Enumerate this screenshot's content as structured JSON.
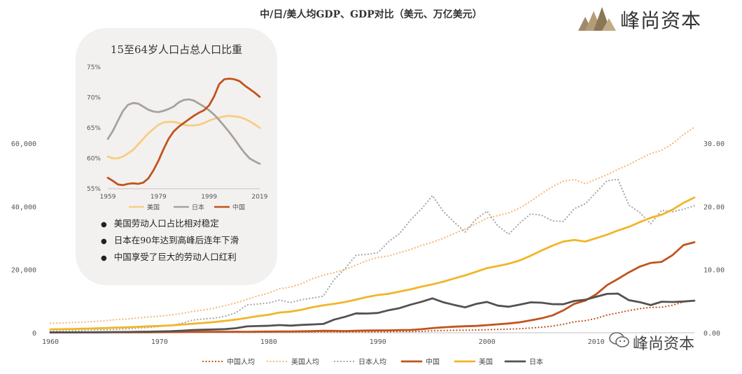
{
  "title": "中/日/美人均GDP、GDP对比（美元、万亿美元）",
  "logo": {
    "text": "峰尚资本"
  },
  "watermark": {
    "text": "峰尚资本"
  },
  "colors": {
    "china": "#c0541e",
    "usa": "#f2b527",
    "japan": "#555150",
    "china_pc": "#c0541e",
    "usa_pc": "#f4b77a",
    "japan_pc": "#a8a6a5",
    "inset_usa": "#f7cd82",
    "inset_japan": "#a9a19c",
    "inset_china": "#c0541e",
    "card_bg": "#f3f1ef"
  },
  "inset": {
    "title": "15至64岁人口占总人口比重",
    "bullets": [
      "美国劳动人口占比相对稳定",
      "日本在90年达到高峰后连年下滑",
      "中国享受了巨大的劳动人口红利"
    ]
  },
  "chart_data": [
    {
      "type": "line",
      "title": "中/日/美人均GDP、GDP对比（美元、万亿美元）",
      "x": [
        1960,
        1961,
        1962,
        1963,
        1964,
        1965,
        1966,
        1967,
        1968,
        1969,
        1970,
        1971,
        1972,
        1973,
        1974,
        1975,
        1976,
        1977,
        1978,
        1979,
        1980,
        1981,
        1982,
        1983,
        1984,
        1985,
        1986,
        1987,
        1988,
        1989,
        1990,
        1991,
        1992,
        1993,
        1994,
        1995,
        1996,
        1997,
        1998,
        1999,
        2000,
        2001,
        2002,
        2003,
        2004,
        2005,
        2006,
        2007,
        2008,
        2009,
        2010,
        2011,
        2012,
        2013,
        2014,
        2015,
        2016,
        2017,
        2018,
        2019
      ],
      "xticks": [
        1960,
        1970,
        1980,
        1990,
        2000,
        2010
      ],
      "xlim": [
        1960,
        2019
      ],
      "y_left": {
        "lim": [
          0,
          70000
        ],
        "ticks": [
          0,
          20000,
          40000,
          60000
        ],
        "tick_labels": [
          "0",
          "20,000",
          "40,000",
          "60,000"
        ]
      },
      "y_right": {
        "lim": [
          0,
          35
        ],
        "ticks": [
          0,
          10,
          20,
          30
        ],
        "tick_labels": [
          "0.00",
          "10.00",
          "20.00",
          "30.00"
        ]
      },
      "legend_position": "bottom",
      "series": [
        {
          "name": "中国人均",
          "axis": "left",
          "style": "dotted",
          "color_key": "china_pc",
          "values": [
            90,
            76,
            70,
            74,
            85,
            98,
            104,
            96,
            91,
            99,
            113,
            118,
            131,
            157,
            160,
            178,
            165,
            185,
            156,
            184,
            195,
            197,
            203,
            225,
            251,
            294,
            282,
            252,
            284,
            311,
            318,
            333,
            367,
            377,
            473,
            610,
            709,
            782,
            829,
            873,
            959,
            1053,
            1148,
            1288,
            1508,
            1753,
            2099,
            2694,
            3468,
            3832,
            4550,
            5618,
            6301,
            7021,
            7651,
            8033,
            8079,
            8759,
            9771,
            10262
          ]
        },
        {
          "name": "美国人均",
          "axis": "left",
          "style": "dotted",
          "color_key": "usa_pc",
          "values": [
            3007,
            3067,
            3244,
            3375,
            3574,
            3828,
            4147,
            4336,
            4696,
            5032,
            5234,
            5609,
            6094,
            6726,
            7226,
            7801,
            8592,
            9453,
            10565,
            11674,
            12575,
            13976,
            14434,
            15544,
            17121,
            18237,
            19071,
            20039,
            21417,
            22857,
            23889,
            24342,
            25419,
            26387,
            27695,
            28691,
            29968,
            31459,
            32854,
            34515,
            36335,
            37133,
            38023,
            39497,
            41712,
            44115,
            46299,
            48050,
            48570,
            47195,
            48651,
            50066,
            51784,
            53291,
            55124,
            56763,
            57867,
            59915,
            62805,
            65118
          ]
        },
        {
          "name": "日本人均",
          "axis": "left",
          "style": "dotted",
          "color_key": "japan_pc",
          "values": [
            479,
            564,
            634,
            718,
            836,
            919,
            1059,
            1229,
            1451,
            1669,
            2037,
            2272,
            2967,
            3997,
            4354,
            4659,
            5197,
            6335,
            8821,
            9105,
            9463,
            10361,
            9578,
            10425,
            10985,
            11585,
            16882,
            20355,
            24593,
            24823,
            25371,
            28925,
            31465,
            35766,
            39269,
            43440,
            38437,
            35022,
            31903,
            36027,
            38532,
            33846,
            31236,
            34808,
            37689,
            37218,
            35434,
            35275,
            39339,
            40855,
            44508,
            48168,
            48603,
            40454,
            38109,
            34524,
            38794,
            38332,
            39159,
            40247
          ]
        },
        {
          "name": "中国",
          "axis": "right",
          "style": "solid",
          "color_key": "china",
          "values": [
            0.06,
            0.05,
            0.05,
            0.05,
            0.06,
            0.07,
            0.08,
            0.07,
            0.07,
            0.08,
            0.09,
            0.1,
            0.11,
            0.14,
            0.14,
            0.16,
            0.15,
            0.17,
            0.15,
            0.18,
            0.19,
            0.2,
            0.21,
            0.23,
            0.26,
            0.31,
            0.3,
            0.27,
            0.31,
            0.35,
            0.36,
            0.38,
            0.43,
            0.44,
            0.56,
            0.73,
            0.86,
            0.96,
            1.03,
            1.09,
            1.21,
            1.34,
            1.47,
            1.66,
            1.96,
            2.29,
            2.75,
            3.55,
            4.59,
            5.1,
            6.09,
            7.55,
            8.53,
            9.57,
            10.48,
            11.06,
            11.23,
            12.31,
            13.89,
            14.34
          ]
        },
        {
          "name": "美国",
          "axis": "right",
          "style": "solid",
          "color_key": "usa",
          "values": [
            0.54,
            0.56,
            0.6,
            0.64,
            0.69,
            0.74,
            0.82,
            0.86,
            0.94,
            1.02,
            1.07,
            1.16,
            1.28,
            1.43,
            1.55,
            1.69,
            1.88,
            2.09,
            2.36,
            2.63,
            2.86,
            3.21,
            3.35,
            3.64,
            4.04,
            4.35,
            4.59,
            4.87,
            5.25,
            5.66,
            5.98,
            6.17,
            6.54,
            6.88,
            7.31,
            7.66,
            8.1,
            8.61,
            9.09,
            9.66,
            10.25,
            10.58,
            10.94,
            11.46,
            12.21,
            13.04,
            13.81,
            14.45,
            14.71,
            14.45,
            14.99,
            15.54,
            16.2,
            16.78,
            17.52,
            18.22,
            18.71,
            19.52,
            20.58,
            21.43
          ]
        },
        {
          "name": "日本",
          "axis": "right",
          "style": "solid",
          "color_key": "japan",
          "values": [
            0.04,
            0.05,
            0.06,
            0.07,
            0.08,
            0.09,
            0.11,
            0.12,
            0.15,
            0.17,
            0.21,
            0.24,
            0.32,
            0.43,
            0.48,
            0.52,
            0.58,
            0.72,
            1.01,
            1.06,
            1.11,
            1.22,
            1.13,
            1.24,
            1.32,
            1.4,
            2.08,
            2.53,
            3.07,
            3.05,
            3.13,
            3.58,
            3.91,
            4.45,
            4.91,
            5.45,
            4.83,
            4.41,
            4.03,
            4.56,
            4.89,
            4.3,
            4.12,
            4.45,
            4.82,
            4.76,
            4.53,
            4.52,
            5.04,
            5.23,
            5.7,
            6.16,
            6.2,
            5.16,
            4.85,
            4.39,
            4.92,
            4.87,
            4.95,
            5.08
          ]
        }
      ]
    },
    {
      "type": "line",
      "title": "15至64岁人口占总人口比重",
      "x": [
        1959,
        1961,
        1963,
        1965,
        1967,
        1969,
        1971,
        1973,
        1975,
        1977,
        1979,
        1981,
        1983,
        1985,
        1987,
        1989,
        1991,
        1993,
        1995,
        1997,
        1999,
        2001,
        2003,
        2005,
        2007,
        2009,
        2011,
        2013,
        2015,
        2017,
        2019
      ],
      "xticks": [
        1959,
        1979,
        1999,
        2019
      ],
      "xlim": [
        1959,
        2019
      ],
      "ylim": [
        55,
        75
      ],
      "yticks": [
        55,
        60,
        65,
        70,
        75
      ],
      "ytick_labels": [
        "55%",
        "60%",
        "65%",
        "70%",
        "75%"
      ],
      "legend_position": "bottom",
      "series": [
        {
          "name": "美国",
          "color_key": "inset_usa",
          "values": [
            60.3,
            60.0,
            60.0,
            60.3,
            60.8,
            61.4,
            62.3,
            63.2,
            64.1,
            64.8,
            65.5,
            65.9,
            66.0,
            66.0,
            65.8,
            65.5,
            65.4,
            65.4,
            65.5,
            65.8,
            66.2,
            66.5,
            66.7,
            66.9,
            67.0,
            66.9,
            66.8,
            66.5,
            66.1,
            65.6,
            65.0
          ]
        },
        {
          "name": "日本",
          "color_key": "inset_japan",
          "values": [
            63.2,
            64.5,
            66.2,
            67.8,
            68.8,
            69.1,
            69.0,
            68.5,
            68.0,
            67.7,
            67.6,
            67.8,
            68.1,
            68.5,
            69.2,
            69.6,
            69.7,
            69.5,
            69.0,
            68.5,
            67.9,
            67.2,
            66.3,
            65.3,
            64.3,
            63.2,
            62.0,
            60.9,
            60.0,
            59.5,
            59.1
          ]
        },
        {
          "name": "中国",
          "color_key": "inset_china",
          "values": [
            56.8,
            56.3,
            55.7,
            55.6,
            55.8,
            55.9,
            55.8,
            56.0,
            56.7,
            58.0,
            59.6,
            61.5,
            63.2,
            64.4,
            65.2,
            65.8,
            66.4,
            67.0,
            67.5,
            67.9,
            68.7,
            70.2,
            72.2,
            73.0,
            73.1,
            73.0,
            72.7,
            72.0,
            71.4,
            70.8,
            70.1
          ]
        }
      ]
    }
  ]
}
